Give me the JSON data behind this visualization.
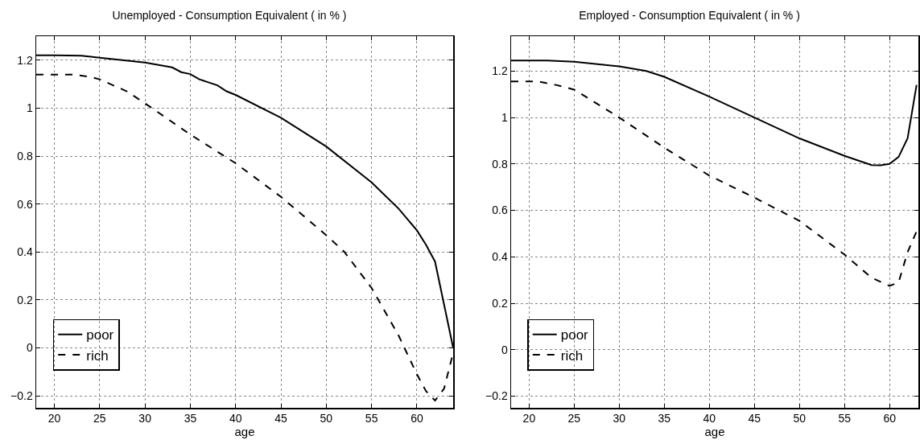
{
  "chart_data": [
    {
      "type": "line",
      "title": "Unemployed - Consumption Equivalent ( in % )",
      "xlabel": "age",
      "xlim": [
        18,
        64
      ],
      "xticks": [
        20,
        25,
        30,
        35,
        40,
        45,
        50,
        55,
        60
      ],
      "ylim": [
        -0.25,
        1.3
      ],
      "yticks": [
        -0.2,
        0,
        0.2,
        0.4,
        0.6,
        0.8,
        1,
        1.2
      ],
      "grid": true,
      "legend": "bottom left",
      "series": [
        {
          "name": "poor",
          "color": "#000000",
          "line_style": "solid",
          "x": [
            18,
            20,
            23,
            25,
            30,
            33,
            34,
            35,
            36,
            38,
            39,
            40,
            45,
            50,
            55,
            58,
            60,
            61,
            62,
            63,
            64
          ],
          "values": [
            1.22,
            1.22,
            1.219,
            1.21,
            1.19,
            1.17,
            1.15,
            1.142,
            1.12,
            1.095,
            1.07,
            1.055,
            0.96,
            0.84,
            0.69,
            0.58,
            0.49,
            0.43,
            0.36,
            0.18,
            0
          ]
        },
        {
          "name": "rich",
          "color": "#000000",
          "line_style": "dashed",
          "x": [
            18,
            22,
            24,
            25,
            28,
            30,
            35,
            40,
            45,
            50,
            52,
            55,
            58,
            60,
            61,
            62,
            63,
            64
          ],
          "values": [
            1.14,
            1.14,
            1.13,
            1.12,
            1.07,
            1.02,
            0.89,
            0.77,
            0.63,
            0.47,
            0.4,
            0.25,
            0.05,
            -0.11,
            -0.18,
            -0.22,
            -0.17,
            -0.02
          ]
        }
      ]
    },
    {
      "type": "line",
      "title": "Employed - Consumption Equivalent ( in % )",
      "xlabel": "age",
      "xlim": [
        18,
        63.2
      ],
      "xticks": [
        20,
        25,
        30,
        35,
        40,
        45,
        50,
        55,
        60
      ],
      "ylim": [
        -0.25,
        1.35
      ],
      "yticks": [
        -0.2,
        0,
        0.2,
        0.4,
        0.6,
        0.8,
        1,
        1.2
      ],
      "grid": true,
      "legend": "bottom left",
      "series": [
        {
          "name": "poor",
          "color": "#000000",
          "line_style": "solid",
          "x": [
            18,
            22,
            25,
            30,
            33,
            35,
            40,
            45,
            50,
            55,
            58,
            59,
            60,
            61,
            62,
            63
          ],
          "values": [
            1.245,
            1.245,
            1.24,
            1.22,
            1.2,
            1.175,
            1.09,
            1.0,
            0.91,
            0.835,
            0.795,
            0.794,
            0.8,
            0.83,
            0.91,
            1.14
          ]
        },
        {
          "name": "rich",
          "color": "#000000",
          "line_style": "dashed",
          "x": [
            18,
            21,
            23,
            25,
            30,
            35,
            40,
            45,
            50,
            55,
            58,
            60,
            61,
            62,
            63
          ],
          "values": [
            1.155,
            1.155,
            1.14,
            1.12,
            1.0,
            0.87,
            0.75,
            0.655,
            0.555,
            0.41,
            0.31,
            0.275,
            0.29,
            0.42,
            0.51
          ]
        }
      ]
    }
  ]
}
